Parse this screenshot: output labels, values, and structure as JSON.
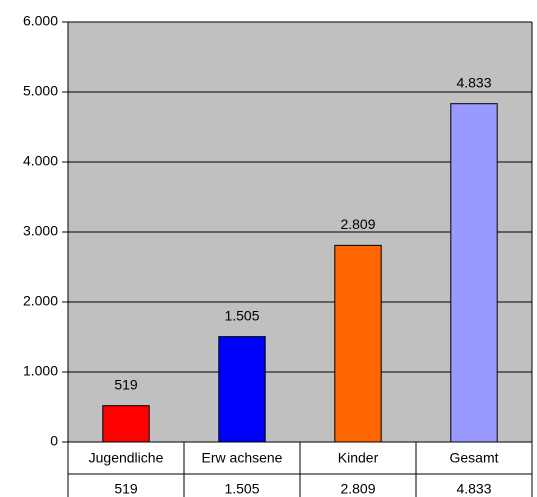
{
  "chart_data": {
    "type": "bar",
    "categories": [
      "Jugendliche",
      "Erw achsene",
      "Kinder",
      "Gesamt"
    ],
    "values": [
      519,
      1505,
      2809,
      4833
    ],
    "value_labels": [
      "519",
      "1.505",
      "2.809",
      "4.833"
    ],
    "colors": [
      "#ff0000",
      "#0000ff",
      "#ff6600",
      "#9999ff"
    ],
    "ylim": [
      0,
      6000
    ],
    "yticks": [
      0,
      {
        "value": 1000,
        "label": "1.000"
      },
      {
        "value": 2000,
        "label": "2.000"
      },
      {
        "value": 3000,
        "label": "3.000"
      },
      {
        "value": 4000,
        "label": "4.000"
      },
      {
        "value": 5000,
        "label": "5.000"
      },
      {
        "value": 6000,
        "label": "6.000"
      }
    ],
    "grid": true
  }
}
